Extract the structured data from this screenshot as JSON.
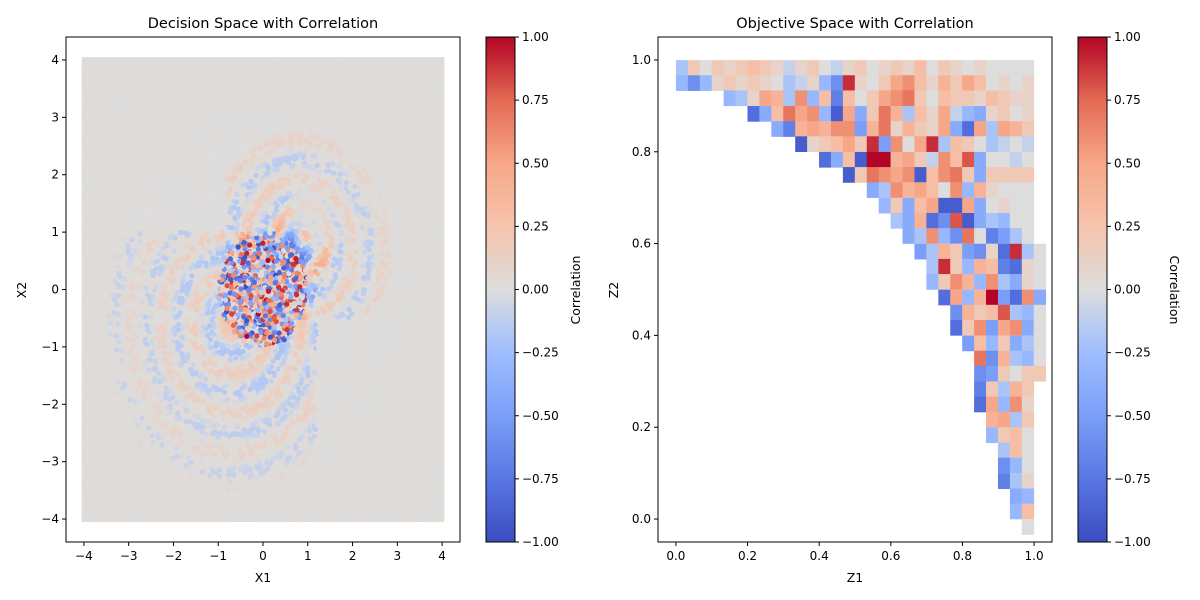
{
  "chart_data": [
    {
      "type": "scatter",
      "title": "Decision Space with Correlation",
      "xlabel": "X1",
      "ylabel": "X2",
      "xlim": [
        -4.4,
        4.4
      ],
      "ylim": [
        -4.4,
        4.4
      ],
      "x_ticks": [
        -4,
        -3,
        -2,
        -1,
        0,
        1,
        2,
        3,
        4
      ],
      "y_ticks": [
        -4,
        -3,
        -2,
        -1,
        0,
        1,
        2,
        3,
        4
      ],
      "x_tick_labels": [
        "−4",
        "−3",
        "−2",
        "−1",
        "0",
        "1",
        "2",
        "3",
        "4"
      ],
      "y_tick_labels": [
        "−4",
        "−3",
        "−2",
        "−1",
        "0",
        "1",
        "2",
        "3",
        "4"
      ],
      "grid": false,
      "colormap": "coolwarm",
      "colorbar": {
        "label": "Correlation",
        "range": [
          -1,
          1
        ],
        "ticks": [
          -1,
          -0.75,
          -0.5,
          -0.25,
          0,
          0.25,
          0.5,
          0.75,
          1
        ],
        "tick_labels": [
          "−1.00",
          "−0.75",
          "−0.50",
          "−0.25",
          "0.00",
          "0.25",
          "0.50",
          "0.75",
          "1.00"
        ]
      },
      "domain": {
        "x": [
          -4,
          4
        ],
        "y": [
          -4,
          4
        ]
      },
      "description_of_pattern": "dense uniform scatter, correlation ~0 almost everywhere; concentric weak rings around the origin and a strong mixed red/blue cluster within |x|,|y| < 1"
    },
    {
      "type": "heatmap",
      "title": "Objective Space with Correlation",
      "xlabel": "Z1",
      "ylabel": "Z2",
      "xlim": [
        -0.05,
        1.05
      ],
      "ylim": [
        -0.05,
        1.05
      ],
      "x_ticks": [
        0.0,
        0.2,
        0.4,
        0.6,
        0.8,
        1.0
      ],
      "y_ticks": [
        0.0,
        0.2,
        0.4,
        0.6,
        0.8,
        1.0
      ],
      "x_tick_labels": [
        "0.0",
        "0.2",
        "0.4",
        "0.6",
        "0.8",
        "1.0"
      ],
      "y_tick_labels": [
        "0.0",
        "0.2",
        "0.4",
        "0.6",
        "0.8",
        "1.0"
      ],
      "grid": false,
      "colormap": "coolwarm",
      "colorbar": {
        "label": "Correlation",
        "range": [
          -1,
          1
        ],
        "ticks": [
          -1,
          -0.75,
          -0.5,
          -0.25,
          0,
          0.25,
          0.5,
          0.75,
          1
        ],
        "tick_labels": [
          "−1.00",
          "−0.75",
          "−0.50",
          "−0.25",
          "0.00",
          "0.25",
          "0.50",
          "0.75",
          "1.00"
        ]
      },
      "bins": 30,
      "cell_size": 0.0333,
      "region": "upper-right triangle: cells filled where Z2 >= 1 - Z1 (attainable front region)",
      "top_row_z2": 1.0,
      "rows_note": "values per row listed from Z2=1.0 downward; each row starts at the first filled column",
      "rows": [
        {
          "z2": 0.983,
          "start_col": 0,
          "values": [
            -0.2,
            0.2,
            0.0,
            0.2,
            0.1,
            0.2,
            0.3,
            0.2,
            0.1,
            -0.1,
            0.1,
            0.2,
            0.0,
            -0.1,
            0.1,
            0.2,
            0.0,
            0.1,
            0.2,
            0.1,
            0.3,
            0.0,
            0.2,
            0.1,
            0.0,
            0.1,
            0.0,
            0.0,
            0.0,
            0.0
          ]
        },
        {
          "z2": 0.95,
          "start_col": 0,
          "values": [
            -0.3,
            -0.6,
            -0.3,
            0.1,
            0.2,
            0.1,
            0.2,
            0.1,
            0.0,
            -0.2,
            -0.1,
            0.1,
            -0.3,
            -0.6,
            0.9,
            0.1,
            0.0,
            0.2,
            0.5,
            0.6,
            0.3,
            0.1,
            0.4,
            0.2,
            0.5,
            0.3,
            0.0,
            0.1,
            0.0,
            0.1
          ]
        },
        {
          "z2": 0.917,
          "start_col": 4,
          "values": [
            -0.3,
            -0.2,
            0.1,
            0.5,
            0.4,
            -0.2,
            0.6,
            -0.3,
            0.3,
            -0.7,
            0.3,
            0.0,
            0.2,
            0.5,
            0.6,
            0.7,
            0.2,
            0.0,
            0.3,
            0.2,
            0.2,
            0.1,
            0.3,
            0.2,
            0.1,
            0.1
          ]
        },
        {
          "z2": 0.883,
          "start_col": 6,
          "values": [
            -0.8,
            -0.4,
            0.3,
            0.7,
            0.5,
            0.6,
            -0.3,
            -0.9,
            0.5,
            -0.4,
            0.2,
            0.7,
            0.4,
            -0.2,
            0.3,
            0.1,
            0.5,
            -0.1,
            -0.3,
            -0.4,
            0.1,
            0.2,
            0.0,
            0.1
          ]
        },
        {
          "z2": 0.85,
          "start_col": 8,
          "values": [
            -0.4,
            -0.7,
            0.4,
            0.5,
            0.4,
            0.6,
            0.6,
            -0.5,
            0.4,
            0.7,
            0.1,
            0.4,
            0.2,
            0.1,
            0.5,
            -0.4,
            -0.8,
            0.5,
            -0.2,
            0.5,
            0.4,
            0.2
          ]
        },
        {
          "z2": 0.817,
          "start_col": 10,
          "values": [
            -0.9,
            0.1,
            0.2,
            0.3,
            0.5,
            0.2,
            0.9,
            -0.5,
            0.6,
            0.0,
            0.5,
            0.9,
            -0.2,
            0.3,
            0.2,
            0.0,
            -0.2,
            -0.1,
            0.0,
            -0.1
          ]
        },
        {
          "z2": 0.783,
          "start_col": 12,
          "values": [
            -0.8,
            -0.4,
            0.3,
            -0.9,
            1.0,
            1.0,
            0.4,
            0.5,
            0.2,
            -0.1,
            0.6,
            0.3,
            0.8,
            -0.4,
            0.0,
            0.0,
            -0.1,
            0.0
          ]
        },
        {
          "z2": 0.75,
          "start_col": 14,
          "values": [
            -0.9,
            0.2,
            0.7,
            0.6,
            0.5,
            0.6,
            -0.9,
            0.3,
            0.6,
            0.7,
            0.2,
            -0.4,
            0.2,
            0.2,
            0.2,
            0.2
          ]
        },
        {
          "z2": 0.717,
          "start_col": 16,
          "values": [
            -0.4,
            -0.2,
            0.6,
            0.4,
            0.5,
            0.3,
            0.0,
            0.6,
            -0.3,
            0.4,
            0.1,
            0.0,
            0.0,
            0.0
          ]
        },
        {
          "z2": 0.683,
          "start_col": 17,
          "values": [
            -0.3,
            0.2,
            -0.4,
            0.3,
            0.5,
            -0.9,
            -0.9,
            0.5,
            -0.4,
            0.0,
            0.1,
            0.0,
            0.0
          ]
        },
        {
          "z2": 0.65,
          "start_col": 18,
          "values": [
            -0.2,
            -0.4,
            0.4,
            -0.8,
            -0.6,
            0.8,
            -0.9,
            -0.4,
            -0.2,
            -0.3,
            0.0,
            0.0
          ]
        },
        {
          "z2": 0.617,
          "start_col": 19,
          "values": [
            -0.4,
            -0.2,
            0.6,
            -0.3,
            -0.6,
            0.7,
            0.0,
            -0.7,
            -0.5,
            -0.2,
            0.0
          ]
        },
        {
          "z2": 0.583,
          "start_col": 20,
          "values": [
            -0.5,
            -0.2,
            0.4,
            0.2,
            -0.5,
            -0.6,
            0.1,
            -0.8,
            0.9,
            -0.2,
            0.0
          ]
        },
        {
          "z2": 0.55,
          "start_col": 21,
          "values": [
            -0.2,
            0.9,
            0.2,
            -0.3,
            0.4,
            0.3,
            -0.7,
            -0.8,
            0.1,
            0.0
          ]
        },
        {
          "z2": 0.517,
          "start_col": 21,
          "values": [
            -0.3,
            0.2,
            0.6,
            0.4,
            -0.3,
            0.6,
            -0.2,
            -0.4,
            0.1,
            0.0
          ]
        },
        {
          "z2": 0.483,
          "start_col": 22,
          "values": [
            -0.8,
            0.5,
            -0.3,
            0.4,
            1.0,
            -0.5,
            -0.8,
            0.6,
            -0.4
          ]
        },
        {
          "z2": 0.45,
          "start_col": 23,
          "values": [
            -0.6,
            0.4,
            0.2,
            0.3,
            0.8,
            -0.2,
            -0.3,
            0.0
          ]
        },
        {
          "z2": 0.417,
          "start_col": 23,
          "values": [
            -0.8,
            0.2,
            0.6,
            -0.5,
            0.5,
            0.6,
            -0.4,
            0.0
          ]
        },
        {
          "z2": 0.383,
          "start_col": 24,
          "values": [
            -0.5,
            0.3,
            -0.3,
            0.2,
            -0.4,
            -0.2,
            0.0
          ]
        },
        {
          "z2": 0.35,
          "start_col": 25,
          "values": [
            0.7,
            -0.6,
            0.4,
            -0.2,
            -0.3,
            0.0
          ]
        },
        {
          "z2": 0.317,
          "start_col": 25,
          "values": [
            -0.6,
            -0.5,
            0.2,
            0.0,
            0.2,
            0.2
          ]
        },
        {
          "z2": 0.283,
          "start_col": 25,
          "values": [
            -0.7,
            0.2,
            -0.2,
            0.4,
            0.2
          ]
        },
        {
          "z2": 0.25,
          "start_col": 25,
          "values": [
            -0.8,
            0.5,
            -0.3,
            0.6,
            0.1
          ]
        },
        {
          "z2": 0.217,
          "start_col": 26,
          "values": [
            0.4,
            0.5,
            -0.2,
            0.2
          ]
        },
        {
          "z2": 0.183,
          "start_col": 26,
          "values": [
            -0.3,
            0.2,
            0.3,
            0.0
          ]
        },
        {
          "z2": 0.15,
          "start_col": 27,
          "values": [
            -0.2,
            0.3,
            0.0
          ]
        },
        {
          "z2": 0.117,
          "start_col": 27,
          "values": [
            -0.6,
            -0.3,
            0.0
          ]
        },
        {
          "z2": 0.083,
          "start_col": 27,
          "values": [
            -0.7,
            -0.2,
            0.1
          ]
        },
        {
          "z2": 0.05,
          "start_col": 28,
          "values": [
            -0.4,
            -0.3
          ]
        },
        {
          "z2": 0.017,
          "start_col": 28,
          "values": [
            -0.3,
            0.3
          ]
        },
        {
          "z2": -0.017,
          "start_col": 29,
          "values": [
            0.0
          ]
        }
      ]
    }
  ]
}
